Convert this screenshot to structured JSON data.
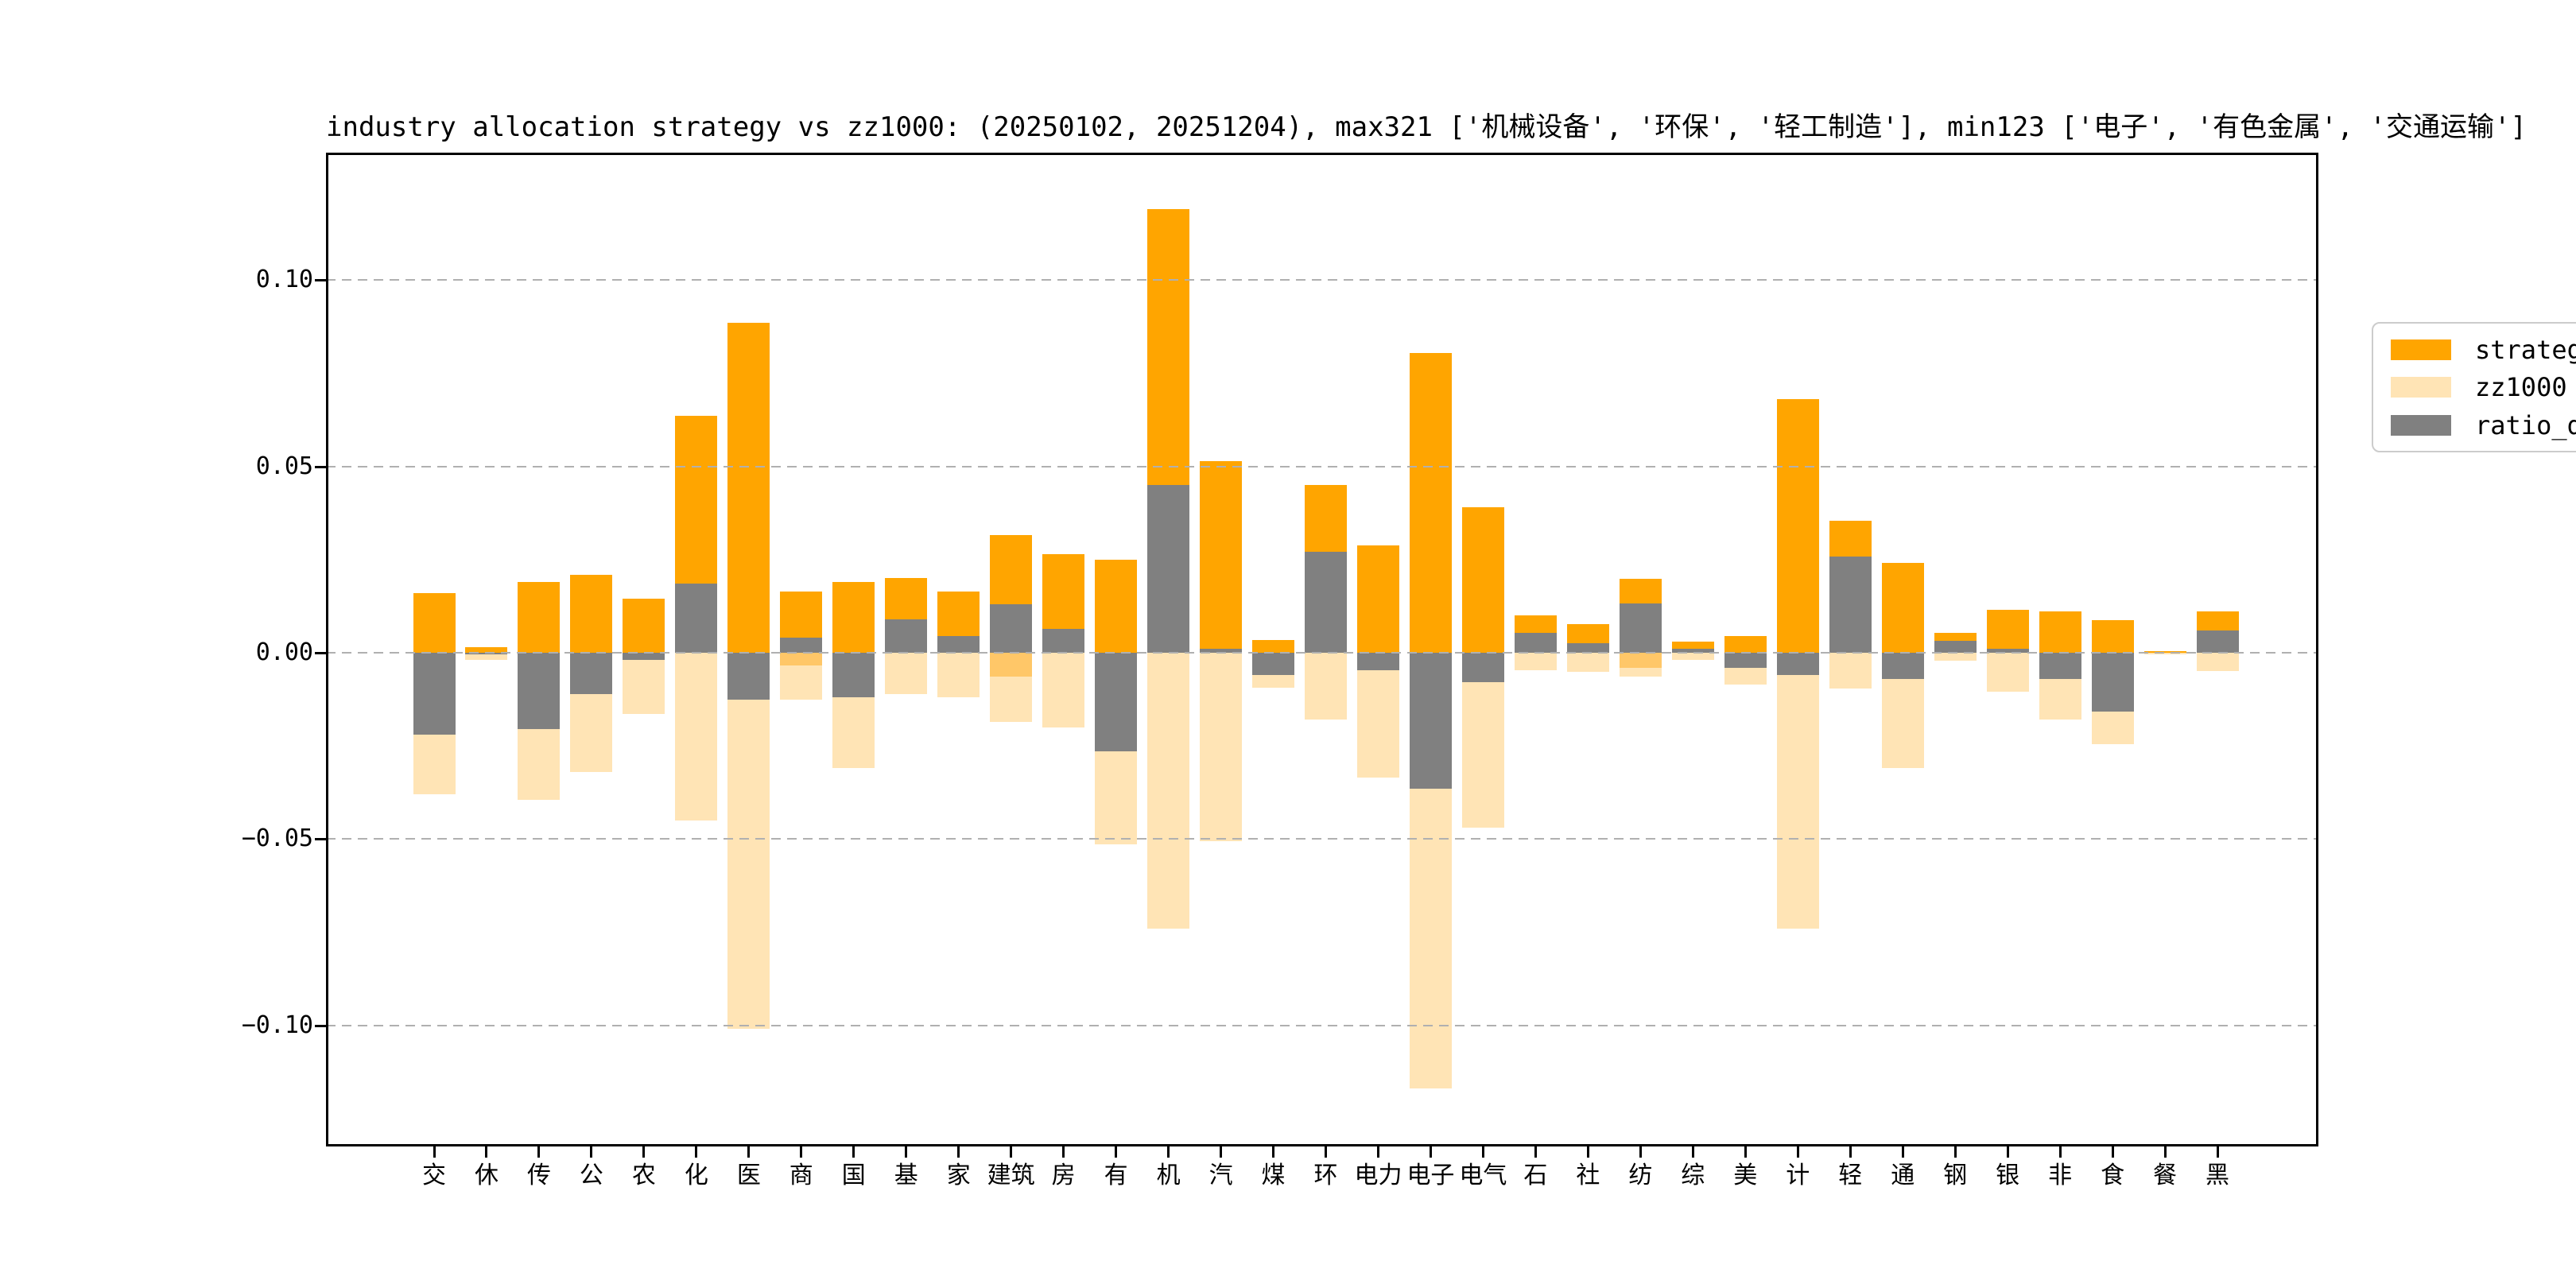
{
  "figure": {
    "background": "#ffffff"
  },
  "chart_data": {
    "type": "bar",
    "title": "industry allocation strategy vs zz1000: (20250102, 20251204), max321 ['机械设备', '环保', '轻工制造'], min123 ['电子', '有色金属', '交通运输']",
    "categories": [
      "交",
      "休",
      "传",
      "公",
      "农",
      "化",
      "医",
      "商",
      "国",
      "基",
      "家",
      "建筑",
      "房",
      "有",
      "机",
      "汽",
      "煤",
      "环",
      "电力",
      "电子",
      "电气",
      "石",
      "社",
      "纺",
      "综",
      "美",
      "计",
      "轻",
      "通",
      "钢",
      "银",
      "非",
      "食",
      "餐",
      "黑"
    ],
    "series": [
      {
        "name": "strategy",
        "color": "#FFA500",
        "direction": "plotted upward from 0",
        "values": [
          0.016,
          0.0015,
          0.019,
          0.021,
          0.0145,
          0.0635,
          0.0885,
          0.0165,
          0.019,
          0.02,
          0.0165,
          0.0315,
          0.0265,
          0.025,
          0.119,
          0.0515,
          0.0035,
          0.045,
          0.0288,
          0.0805,
          0.039,
          0.01,
          0.0077,
          0.0198,
          0.003,
          0.0045,
          0.068,
          0.0355,
          0.024,
          0.0054,
          0.0115,
          0.011,
          0.0087,
          0.0005,
          0.011
        ]
      },
      {
        "name": "zz1000",
        "color": "#FFE4B5",
        "direction": "plotted downward from 0 (mirrored weights)",
        "values": [
          -0.038,
          -0.002,
          -0.0395,
          -0.032,
          -0.0165,
          -0.045,
          -0.101,
          -0.0125,
          -0.031,
          -0.011,
          -0.012,
          -0.0185,
          -0.02,
          -0.0515,
          -0.074,
          -0.0505,
          -0.0095,
          -0.018,
          -0.0334,
          -0.117,
          -0.047,
          -0.0047,
          -0.0052,
          -0.0065,
          -0.002,
          -0.0085,
          -0.074,
          -0.0097,
          -0.031,
          -0.0022,
          -0.0105,
          -0.018,
          -0.0245,
          -0.0005,
          -0.005
        ]
      },
      {
        "name": "ratio_diff",
        "color": "#808080",
        "direction": "signed, strategy minus zz1000",
        "values": [
          -0.022,
          -0.0005,
          -0.0205,
          -0.011,
          -0.002,
          0.0185,
          -0.0125,
          0.004,
          -0.012,
          0.009,
          0.0045,
          0.013,
          0.0065,
          -0.0265,
          0.045,
          0.001,
          -0.006,
          0.027,
          -0.0046,
          -0.0365,
          -0.008,
          0.0053,
          0.0025,
          0.0133,
          0.001,
          -0.004,
          -0.006,
          0.0258,
          -0.007,
          0.0032,
          0.001,
          -0.007,
          -0.0158,
          0.0,
          0.006
        ]
      }
    ],
    "overlap_bands": {
      "color": "#FFC768",
      "note": "darker cream band just below zero visible on a few bars",
      "values": [
        0,
        0,
        0,
        0,
        0,
        0,
        0,
        -0.0034,
        0,
        0,
        0,
        -0.0064,
        0,
        0,
        0,
        0,
        0,
        0,
        0,
        0,
        0,
        0,
        0,
        -0.0041,
        0,
        0,
        0,
        0,
        0,
        0,
        0,
        0,
        0,
        0,
        0
      ]
    },
    "ylim": [
      -0.1325,
      0.1342
    ],
    "yticks": [
      {
        "label": "0.10",
        "value": 0.1
      },
      {
        "label": "0.05",
        "value": 0.05
      },
      {
        "label": "0.00",
        "value": 0.0
      },
      {
        "label": "−0.05",
        "value": -0.05
      },
      {
        "label": "−0.10",
        "value": -0.1
      }
    ],
    "xlabel": "",
    "ylabel": "",
    "grid": {
      "style": "dashed",
      "color": "#b0b0b0",
      "lines_above_bars": true
    },
    "legend_position": "upper right"
  },
  "legend": {
    "items": [
      {
        "label": "strategy",
        "color": "#FFA500"
      },
      {
        "label": "zz1000",
        "color": "#FFE4B5"
      },
      {
        "label": "ratio_diff",
        "color": "#808080"
      }
    ]
  }
}
